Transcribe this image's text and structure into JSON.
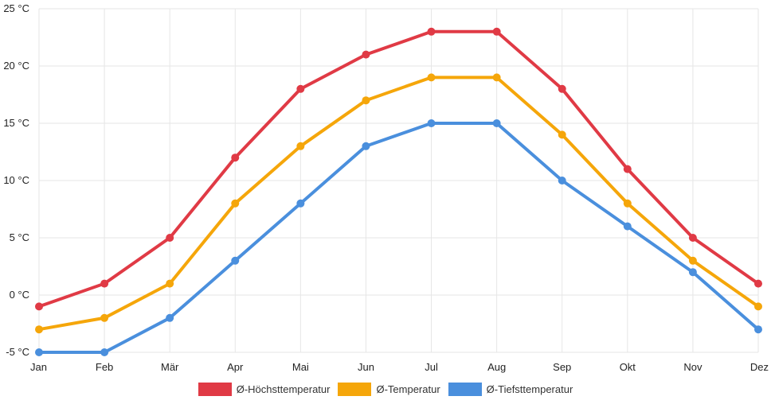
{
  "chart_data": {
    "type": "line",
    "categories": [
      "Jan",
      "Feb",
      "Mär",
      "Apr",
      "Mai",
      "Jun",
      "Jul",
      "Aug",
      "Sep",
      "Okt",
      "Nov",
      "Dez"
    ],
    "series": [
      {
        "name": "Ø-Höchsttemperatur",
        "color": "#e03a45",
        "values": [
          -1,
          1,
          5,
          12,
          18,
          21,
          23,
          23,
          18,
          11,
          5,
          1
        ]
      },
      {
        "name": "Ø-Temperatur",
        "color": "#f5a60a",
        "values": [
          -3,
          -2,
          1,
          8,
          13,
          17,
          19,
          19,
          14,
          8,
          3,
          -1
        ]
      },
      {
        "name": "Ø-Tiefsttemperatur",
        "color": "#4a8fdd",
        "values": [
          -5,
          -5,
          -2,
          3,
          8,
          13,
          15,
          15,
          10,
          6,
          2,
          -3
        ]
      }
    ],
    "y_ticks": [
      "25 °C",
      "20 °C",
      "15 °C",
      "10 °C",
      "5 °C",
      "0 °C",
      "-5 °C"
    ],
    "ylim": [
      -5,
      25
    ],
    "y_step": 5,
    "grid": true,
    "legend_position": "bottom-center",
    "title": "",
    "xlabel": "",
    "ylabel": ""
  }
}
